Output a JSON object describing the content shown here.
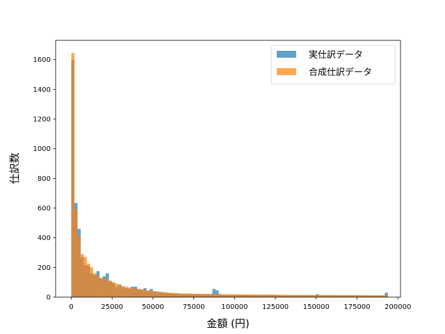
{
  "chart_data": {
    "type": "bar",
    "subtype": "overlaid-histogram",
    "title": "",
    "xlabel": "金額 (円)",
    "ylabel": "仕訳数",
    "xlim": [
      -9600,
      201600
    ],
    "ylim": [
      0,
      1730
    ],
    "xticks": [
      0,
      25000,
      50000,
      75000,
      100000,
      125000,
      150000,
      175000,
      200000
    ],
    "xtick_labels": [
      "0",
      "25000",
      "50000",
      "75000",
      "100000",
      "125000",
      "150000",
      "175000",
      "200000"
    ],
    "yticks": [
      0,
      200,
      400,
      600,
      800,
      1000,
      1200,
      1400,
      1600
    ],
    "ytick_labels": [
      "0",
      "200",
      "400",
      "600",
      "800",
      "1000",
      "1200",
      "1400",
      "1600"
    ],
    "grid": false,
    "legend_position": "top-right",
    "bin_width": 1920,
    "series": [
      {
        "name": "実仕訳データ",
        "color": "#1f77b4",
        "opacity": 0.7,
        "x_start": 0,
        "values": [
          1600,
          635,
          460,
          270,
          215,
          210,
          160,
          150,
          175,
          125,
          140,
          160,
          105,
          95,
          70,
          85,
          65,
          60,
          55,
          70,
          70,
          55,
          50,
          60,
          40,
          55,
          40,
          35,
          35,
          30,
          30,
          25,
          25,
          25,
          20,
          20,
          20,
          20,
          20,
          20,
          20,
          20,
          20,
          20,
          20,
          55,
          45,
          20,
          15,
          15,
          15,
          15,
          15,
          15,
          15,
          15,
          15,
          15,
          15,
          15,
          15,
          15,
          15,
          15,
          15,
          15,
          12,
          12,
          12,
          12,
          12,
          12,
          12,
          12,
          12,
          12,
          12,
          12,
          20,
          12,
          12,
          12,
          12,
          12,
          12,
          12,
          12,
          12,
          12,
          12,
          12,
          12,
          12,
          12,
          12,
          12,
          12,
          12,
          12,
          12,
          30
        ]
      },
      {
        "name": "合成仕訳データ",
        "color": "#ff7f0e",
        "opacity": 0.7,
        "x_start": 0,
        "values": [
          1645,
          590,
          410,
          290,
          270,
          225,
          200,
          160,
          145,
          130,
          125,
          115,
          110,
          100,
          90,
          80,
          75,
          70,
          65,
          60,
          60,
          55,
          52,
          50,
          45,
          42,
          40,
          38,
          35,
          33,
          30,
          30,
          28,
          27,
          26,
          25,
          25,
          24,
          24,
          23,
          23,
          22,
          22,
          22,
          21,
          21,
          21,
          20,
          20,
          20,
          19,
          19,
          19,
          19,
          18,
          18,
          18,
          18,
          17,
          17,
          17,
          17,
          17,
          16,
          16,
          16,
          16,
          16,
          16,
          15,
          15,
          15,
          15,
          15,
          15,
          15,
          14,
          14,
          14,
          14,
          14,
          14,
          14,
          14,
          13,
          13,
          13,
          13,
          13,
          13,
          13,
          13,
          13,
          12,
          12,
          12,
          12,
          12,
          12,
          12,
          12
        ]
      }
    ]
  }
}
